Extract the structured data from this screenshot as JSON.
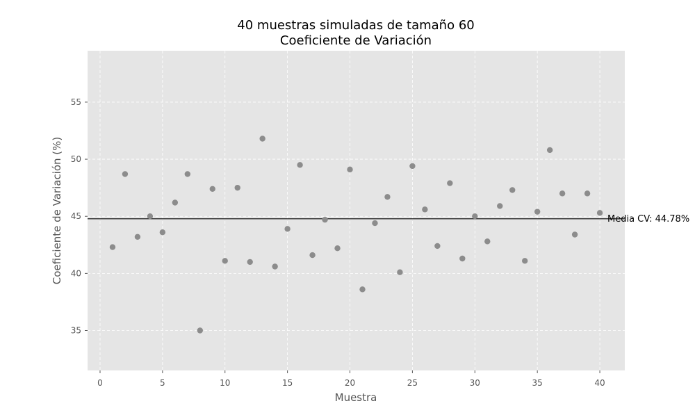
{
  "chart_data": {
    "type": "scatter",
    "title": "40 muestras simuladas de tamaño 60",
    "subtitle": "Coeficiente de Variación",
    "xlabel": "Muestra",
    "ylabel": "Coeficiente de Variación (%)",
    "xlim": [
      -1,
      42
    ],
    "ylim": [
      31.5,
      59.5
    ],
    "xticks": [
      0,
      5,
      10,
      15,
      20,
      25,
      30,
      35,
      40
    ],
    "yticks": [
      35,
      40,
      45,
      50,
      55
    ],
    "grid": true,
    "series": [
      {
        "color": "#8c8c8c",
        "x": [
          1,
          2,
          3,
          4,
          5,
          6,
          7,
          8,
          9,
          10,
          11,
          12,
          13,
          14,
          15,
          16,
          17,
          18,
          19,
          20,
          21,
          22,
          23,
          24,
          25,
          26,
          27,
          28,
          29,
          30,
          31,
          32,
          33,
          34,
          35,
          36,
          37,
          38,
          39,
          40
        ],
        "y": [
          42.3,
          48.7,
          43.2,
          45.0,
          43.6,
          46.2,
          48.7,
          35.0,
          47.4,
          41.1,
          47.5,
          41.0,
          51.8,
          40.6,
          43.9,
          49.5,
          41.6,
          44.7,
          42.2,
          49.1,
          38.6,
          44.4,
          46.7,
          40.1,
          49.4,
          45.6,
          42.4,
          47.9,
          41.3,
          45.0,
          42.8,
          45.9,
          47.3,
          41.1,
          45.4,
          50.8,
          47.0,
          43.4,
          47.0,
          45.3
        ]
      }
    ],
    "mean_line": {
      "value": 44.78,
      "label": "Media CV: 44.78%",
      "color": "#000000"
    },
    "colors": {
      "plot_bg": "#e5e5e5",
      "grid": "#ffffff",
      "text": "#555555"
    }
  }
}
